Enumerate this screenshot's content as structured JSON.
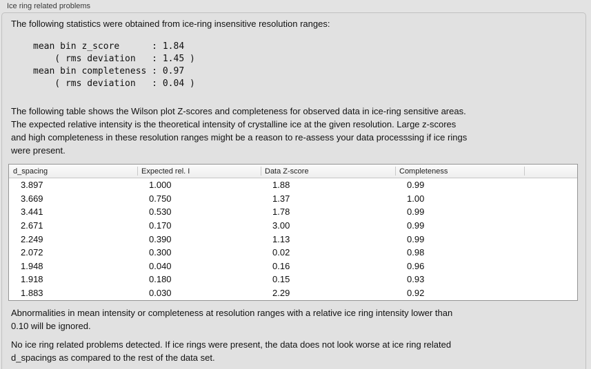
{
  "panel": {
    "title": "Ice ring related problems"
  },
  "intro_text": "The following statistics were obtained from ice-ring insensitive resolution ranges:",
  "stats_block": "mean bin z_score      : 1.84\n    ( rms deviation   : 1.45 )\nmean bin completeness : 0.97\n    ( rms deviation   : 0.04 )",
  "stats": {
    "mean_bin_z_score": "1.84",
    "z_score_rms_deviation": "1.45",
    "mean_bin_completeness": "0.97",
    "completeness_rms_deviation": "0.04"
  },
  "table_description": "The following table shows the Wilson plot Z-scores and completeness for observed data in ice-ring sensitive areas.\nThe expected relative intensity is the theoretical intensity of crystalline ice at the given resolution. Large z-scores\nand high completeness in these resolution ranges might be a reason to re-assess your data processsing if ice rings\nwere present.",
  "ice_ring_table": {
    "columns": [
      "d_spacing",
      "Expected rel. I",
      "Data Z-score",
      "Completeness"
    ],
    "rows": [
      [
        "3.897",
        "1.000",
        "1.88",
        "0.99"
      ],
      [
        "3.669",
        "0.750",
        "1.37",
        "1.00"
      ],
      [
        "3.441",
        "0.530",
        "1.78",
        "0.99"
      ],
      [
        "2.671",
        "0.170",
        "3.00",
        "0.99"
      ],
      [
        "2.249",
        "0.390",
        "1.13",
        "0.99"
      ],
      [
        "2.072",
        "0.300",
        "0.02",
        "0.98"
      ],
      [
        "1.948",
        "0.040",
        "0.16",
        "0.96"
      ],
      [
        "1.918",
        "0.180",
        "0.15",
        "0.93"
      ],
      [
        "1.883",
        "0.030",
        "2.29",
        "0.92"
      ]
    ]
  },
  "ignore_note": "Abnormalities in mean intensity or completeness at resolution ranges with a relative ice ring intensity lower than\n0.10 will be ignored.",
  "conclusion": "No ice ring related problems detected. If ice rings were present, the data does not look worse at ice ring related\nd_spacings as compared to the rest of the data set.",
  "colors": {
    "page_bg": "#e3e3e3",
    "group_box_bg": "#e1e1e1",
    "group_box_border": "#c0c0c0",
    "table_border": "#949494",
    "table_header_bg": "#f4f4f4",
    "table_body_bg": "#ffffff"
  }
}
